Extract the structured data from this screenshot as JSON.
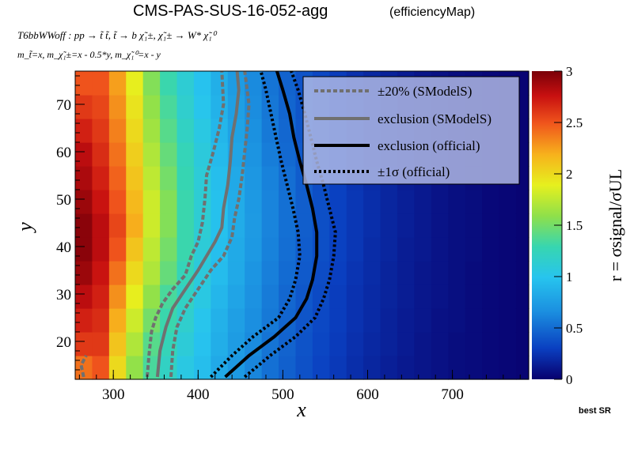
{
  "header": {
    "title": "CMS-PAS-SUS-16-052-agg",
    "subtitle": "(efficiencyMap)",
    "process": "T6bbWWoff : pp  → t̃ t̃, t̃  → b χ̃₁±, χ̃₁± → W* χ̃₁⁰",
    "masses": "m_t̃=x, m_χ̃₁±=x - 0.5*y, m_χ̃₁⁰=x - y"
  },
  "footer": {
    "note": "best SR"
  },
  "chart_data": {
    "type": "heatmap",
    "xlabel": "x",
    "ylabel": "y",
    "zlabel": "r = σsignal/σUL",
    "xlim": [
      255,
      790
    ],
    "ylim": [
      12,
      77
    ],
    "zlim": [
      0,
      3
    ],
    "xticks": [
      300,
      400,
      500,
      600,
      700
    ],
    "yticks": [
      20,
      30,
      40,
      50,
      60,
      70
    ],
    "zticks": [
      0,
      0.5,
      1,
      1.5,
      2,
      2.5,
      3
    ],
    "grid": false,
    "legend_position": "top-right",
    "color_scale": [
      "#08006e",
      "#0a3fc0",
      "#1b8fe0",
      "#27c4ee",
      "#37d6b0",
      "#8fe04a",
      "#e6f01e",
      "#f7b11c",
      "#f0561c",
      "#c81010",
      "#7a0008"
    ],
    "grid_x": [
      255,
      275,
      295,
      315,
      335,
      355,
      375,
      395,
      415,
      435,
      455,
      475,
      495,
      515,
      535,
      555,
      575,
      595,
      615,
      635,
      655,
      675,
      695,
      715,
      735,
      755,
      775,
      790
    ],
    "grid_y": [
      12,
      17,
      22,
      27,
      32,
      37,
      42,
      47,
      52,
      57,
      62,
      67,
      72,
      77
    ],
    "heat_values": [
      [
        2.4,
        2.5,
        2.0,
        1.6,
        1.35,
        1.2,
        1.05,
        0.95,
        0.82,
        0.72,
        0.62,
        0.52,
        0.45,
        0.38,
        0.32,
        0.27,
        0.22,
        0.18,
        0.15,
        0.12,
        0.1,
        0.08,
        0.06,
        0.05,
        0.04,
        0.03,
        0.02
      ],
      [
        2.6,
        2.6,
        2.1,
        1.7,
        1.4,
        1.25,
        1.1,
        0.98,
        0.85,
        0.74,
        0.64,
        0.54,
        0.46,
        0.39,
        0.33,
        0.28,
        0.23,
        0.19,
        0.16,
        0.13,
        0.1,
        0.08,
        0.06,
        0.05,
        0.04,
        0.03,
        0.02
      ],
      [
        2.7,
        2.65,
        2.2,
        1.8,
        1.5,
        1.3,
        1.15,
        1.0,
        0.87,
        0.76,
        0.66,
        0.56,
        0.47,
        0.4,
        0.34,
        0.29,
        0.24,
        0.2,
        0.16,
        0.13,
        0.11,
        0.08,
        0.07,
        0.05,
        0.04,
        0.03,
        0.02
      ],
      [
        2.8,
        2.7,
        2.3,
        1.9,
        1.6,
        1.35,
        1.2,
        1.05,
        0.9,
        0.79,
        0.68,
        0.57,
        0.48,
        0.41,
        0.35,
        0.29,
        0.24,
        0.2,
        0.17,
        0.14,
        0.11,
        0.09,
        0.07,
        0.05,
        0.04,
        0.03,
        0.02
      ],
      [
        2.9,
        2.75,
        2.4,
        2.0,
        1.7,
        1.45,
        1.25,
        1.08,
        0.94,
        0.82,
        0.7,
        0.59,
        0.5,
        0.42,
        0.36,
        0.3,
        0.25,
        0.21,
        0.17,
        0.14,
        0.11,
        0.09,
        0.07,
        0.05,
        0.04,
        0.03,
        0.02
      ],
      [
        2.95,
        2.8,
        2.5,
        2.1,
        1.75,
        1.5,
        1.3,
        1.1,
        0.96,
        0.83,
        0.72,
        0.6,
        0.51,
        0.43,
        0.37,
        0.31,
        0.26,
        0.21,
        0.18,
        0.14,
        0.12,
        0.09,
        0.07,
        0.06,
        0.04,
        0.03,
        0.02
      ],
      [
        2.95,
        2.8,
        2.55,
        2.2,
        1.8,
        1.55,
        1.3,
        1.12,
        0.97,
        0.84,
        0.73,
        0.61,
        0.52,
        0.44,
        0.37,
        0.31,
        0.26,
        0.22,
        0.18,
        0.15,
        0.12,
        0.09,
        0.07,
        0.06,
        0.04,
        0.03,
        0.02
      ],
      [
        2.9,
        2.75,
        2.5,
        2.15,
        1.8,
        1.55,
        1.3,
        1.12,
        0.97,
        0.84,
        0.72,
        0.61,
        0.52,
        0.44,
        0.37,
        0.31,
        0.26,
        0.22,
        0.18,
        0.15,
        0.12,
        0.09,
        0.07,
        0.06,
        0.04,
        0.03,
        0.02
      ],
      [
        2.85,
        2.7,
        2.45,
        2.1,
        1.75,
        1.5,
        1.28,
        1.1,
        0.95,
        0.82,
        0.71,
        0.6,
        0.51,
        0.43,
        0.36,
        0.3,
        0.25,
        0.21,
        0.18,
        0.14,
        0.12,
        0.09,
        0.07,
        0.05,
        0.04,
        0.03,
        0.02
      ],
      [
        2.8,
        2.65,
        2.4,
        2.05,
        1.7,
        1.45,
        1.25,
        1.08,
        0.93,
        0.8,
        0.69,
        0.58,
        0.49,
        0.42,
        0.35,
        0.3,
        0.25,
        0.2,
        0.17,
        0.14,
        0.11,
        0.09,
        0.07,
        0.05,
        0.04,
        0.03,
        0.02
      ],
      [
        2.7,
        2.6,
        2.35,
        2.0,
        1.65,
        1.4,
        1.2,
        1.05,
        0.9,
        0.78,
        0.67,
        0.56,
        0.48,
        0.41,
        0.34,
        0.29,
        0.24,
        0.2,
        0.17,
        0.14,
        0.11,
        0.09,
        0.07,
        0.05,
        0.04,
        0.03,
        0.02
      ],
      [
        2.6,
        2.55,
        2.3,
        1.95,
        1.6,
        1.35,
        1.15,
        1.0,
        0.88,
        0.76,
        0.65,
        0.55,
        0.47,
        0.4,
        0.34,
        0.28,
        0.24,
        0.2,
        0.16,
        0.13,
        0.11,
        0.08,
        0.07,
        0.05,
        0.04,
        0.03,
        0.02
      ],
      [
        2.5,
        2.5,
        2.25,
        1.9,
        1.55,
        1.3,
        1.12,
        0.98,
        0.86,
        0.74,
        0.64,
        0.54,
        0.46,
        0.39,
        0.33,
        0.28,
        0.23,
        0.19,
        0.16,
        0.13,
        0.1,
        0.08,
        0.06,
        0.05,
        0.04,
        0.03,
        0.02
      ]
    ],
    "series": [
      {
        "name": "±20% (SModelS)",
        "style": "dashed",
        "color": "#707070",
        "segments": [
          [
            [
              340,
              12.5
            ],
            [
              342,
              17
            ],
            [
              345,
              22
            ],
            [
              350,
              25
            ],
            [
              358,
              28
            ],
            [
              370,
              31
            ],
            [
              385,
              34
            ],
            [
              392,
              38
            ],
            [
              400,
              41
            ],
            [
              405,
              45
            ],
            [
              408,
              50
            ],
            [
              410,
              55
            ],
            [
              418,
              60
            ],
            [
              425,
              65
            ],
            [
              430,
              70
            ],
            [
              428,
              77
            ]
          ],
          [
            [
              368,
              12.5
            ],
            [
              370,
              18
            ],
            [
              375,
              23
            ],
            [
              385,
              27
            ],
            [
              400,
              31
            ],
            [
              415,
              35
            ],
            [
              430,
              38
            ],
            [
              440,
              42
            ],
            [
              443,
              46
            ],
            [
              448,
              50
            ],
            [
              452,
              55
            ],
            [
              455,
              60
            ],
            [
              458,
              65
            ],
            [
              460,
              70
            ],
            [
              455,
              77
            ]
          ],
          [
            [
              265,
              12.5
            ],
            [
              262,
              15
            ],
            [
              268,
              17
            ]
          ]
        ]
      },
      {
        "name": "exclusion (SModelS)",
        "style": "solid",
        "color": "#707070",
        "segments": [
          [
            [
              352,
              12.5
            ],
            [
              355,
              18
            ],
            [
              362,
              23
            ],
            [
              370,
              27
            ],
            [
              385,
              31
            ],
            [
              400,
              35
            ],
            [
              410,
              38
            ],
            [
              420,
              41
            ],
            [
              428,
              44
            ],
            [
              430,
              48
            ],
            [
              435,
              53
            ],
            [
              438,
              58
            ],
            [
              440,
              63
            ],
            [
              445,
              68
            ],
            [
              448,
              73
            ],
            [
              446,
              77
            ]
          ]
        ]
      },
      {
        "name": "exclusion (official)",
        "style": "solid",
        "color": "#000000",
        "segments": [
          [
            [
              432,
              12.5
            ],
            [
              460,
              17
            ],
            [
              490,
              21
            ],
            [
              515,
              25
            ],
            [
              528,
              29
            ],
            [
              535,
              33
            ],
            [
              540,
              38
            ],
            [
              540,
              43
            ],
            [
              535,
              48
            ],
            [
              528,
              53
            ],
            [
              520,
              58
            ],
            [
              513,
              63
            ],
            [
              508,
              68
            ],
            [
              500,
              73
            ],
            [
              493,
              77
            ]
          ]
        ]
      },
      {
        "name": "±1σ (official)",
        "style": "dotted",
        "color": "#000000",
        "segments": [
          [
            [
              415,
              12.5
            ],
            [
              440,
              17
            ],
            [
              465,
              21
            ],
            [
              495,
              25
            ],
            [
              508,
              29
            ],
            [
              515,
              33
            ],
            [
              520,
              38
            ],
            [
              518,
              43
            ],
            [
              512,
              48
            ],
            [
              505,
              53
            ],
            [
              498,
              58
            ],
            [
              492,
              63
            ],
            [
              486,
              68
            ],
            [
              480,
              73
            ],
            [
              474,
              77
            ]
          ],
          [
            [
              455,
              12.5
            ],
            [
              485,
              17
            ],
            [
              515,
              21
            ],
            [
              538,
              25
            ],
            [
              548,
              29
            ],
            [
              555,
              33
            ],
            [
              560,
              38
            ],
            [
              562,
              43
            ],
            [
              555,
              48
            ],
            [
              548,
              53
            ],
            [
              540,
              58
            ],
            [
              533,
              63
            ],
            [
              526,
              68
            ],
            [
              518,
              73
            ],
            [
              510,
              77
            ]
          ]
        ]
      }
    ]
  }
}
